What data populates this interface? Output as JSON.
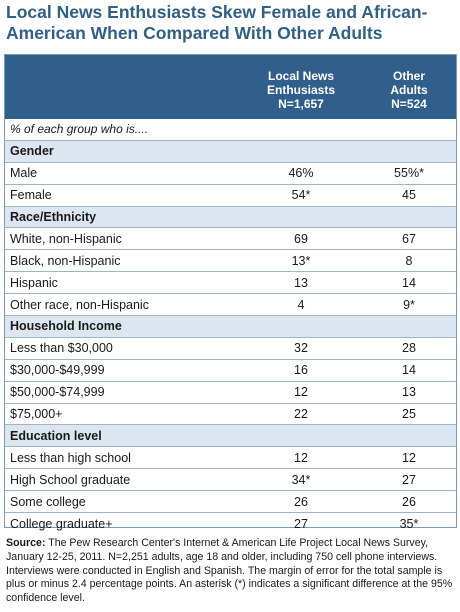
{
  "title": "Local News Enthusiasts Skew Female and African-American When Compared With Other Adults",
  "chart_data": {
    "type": "table",
    "columns": [
      {
        "lines": [
          "Local News",
          "Enthusiasts",
          "N=1,657"
        ]
      },
      {
        "lines": [
          "Other",
          "Adults",
          "N=524"
        ]
      }
    ],
    "note": "% of each group who is....",
    "rows": [
      {
        "kind": "section",
        "label": "Gender"
      },
      {
        "kind": "data",
        "label": "Male",
        "v1": "46%",
        "v2": "55%*"
      },
      {
        "kind": "data",
        "label": "Female",
        "v1": "54*",
        "v2": "45"
      },
      {
        "kind": "section",
        "label": "Race/Ethnicity"
      },
      {
        "kind": "data",
        "label": "White, non-Hispanic",
        "v1": "69",
        "v2": "67"
      },
      {
        "kind": "data",
        "label": "Black, non-Hispanic",
        "v1": "13*",
        "v2": "8"
      },
      {
        "kind": "data",
        "label": "Hispanic",
        "v1": "13",
        "v2": "14"
      },
      {
        "kind": "data",
        "label": "Other race, non-Hispanic",
        "v1": "4",
        "v2": "9*"
      },
      {
        "kind": "section",
        "label": "Household Income"
      },
      {
        "kind": "data",
        "label": "Less than $30,000",
        "v1": "32",
        "v2": "28"
      },
      {
        "kind": "data",
        "label": "$30,000-$49,999",
        "v1": "16",
        "v2": "14"
      },
      {
        "kind": "data",
        "label": "$50,000-$74,999",
        "v1": "12",
        "v2": "13"
      },
      {
        "kind": "data",
        "label": "$75,000+",
        "v1": "22",
        "v2": "25"
      },
      {
        "kind": "section",
        "label": "Education level"
      },
      {
        "kind": "data",
        "label": "Less than high school",
        "v1": "12",
        "v2": "12"
      },
      {
        "kind": "data",
        "label": "High School graduate",
        "v1": "34*",
        "v2": "27"
      },
      {
        "kind": "data",
        "label": "Some college",
        "v1": "26",
        "v2": "26"
      },
      {
        "kind": "data",
        "label": "College graduate+",
        "v1": "27",
        "v2": "35*"
      }
    ]
  },
  "source": {
    "label": "Source:",
    "text": "The Pew Research Center's Internet & American Life Project Local News Survey, January 12-25, 2011. N=2,251 adults, age 18 and older, including 750 cell phone interviews. Interviews were conducted in English and Spanish. The margin of error for the total sample is plus or minus 2.4 percentage points.  An asterisk (*) indicates a significant difference at the 95% confidence level."
  }
}
